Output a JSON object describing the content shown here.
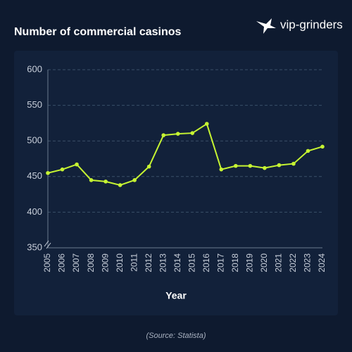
{
  "logo": "vip-grinders",
  "source": "(Source: Statista)",
  "chart_data": {
    "type": "line",
    "title": "Number of commercial casinos",
    "x_label": "Year",
    "categories": [
      "2005",
      "2006",
      "2007",
      "2008",
      "2009",
      "2010",
      "2011",
      "2012",
      "2013",
      "2014",
      "2015",
      "2016",
      "2017",
      "2018",
      "2019",
      "2020",
      "2021",
      "2022",
      "2023",
      "2024"
    ],
    "series": [
      {
        "name": "Number of commercial casinos",
        "color": "#c6f432",
        "values": [
          455,
          460,
          467,
          445,
          443,
          438,
          445,
          464,
          508,
          510,
          511,
          524,
          460,
          465,
          465,
          462,
          466,
          468,
          486,
          492
        ]
      }
    ],
    "ylim": [
      350,
      600
    ],
    "yticks": [
      350,
      400,
      450,
      500,
      550,
      600
    ],
    "grid": true
  }
}
